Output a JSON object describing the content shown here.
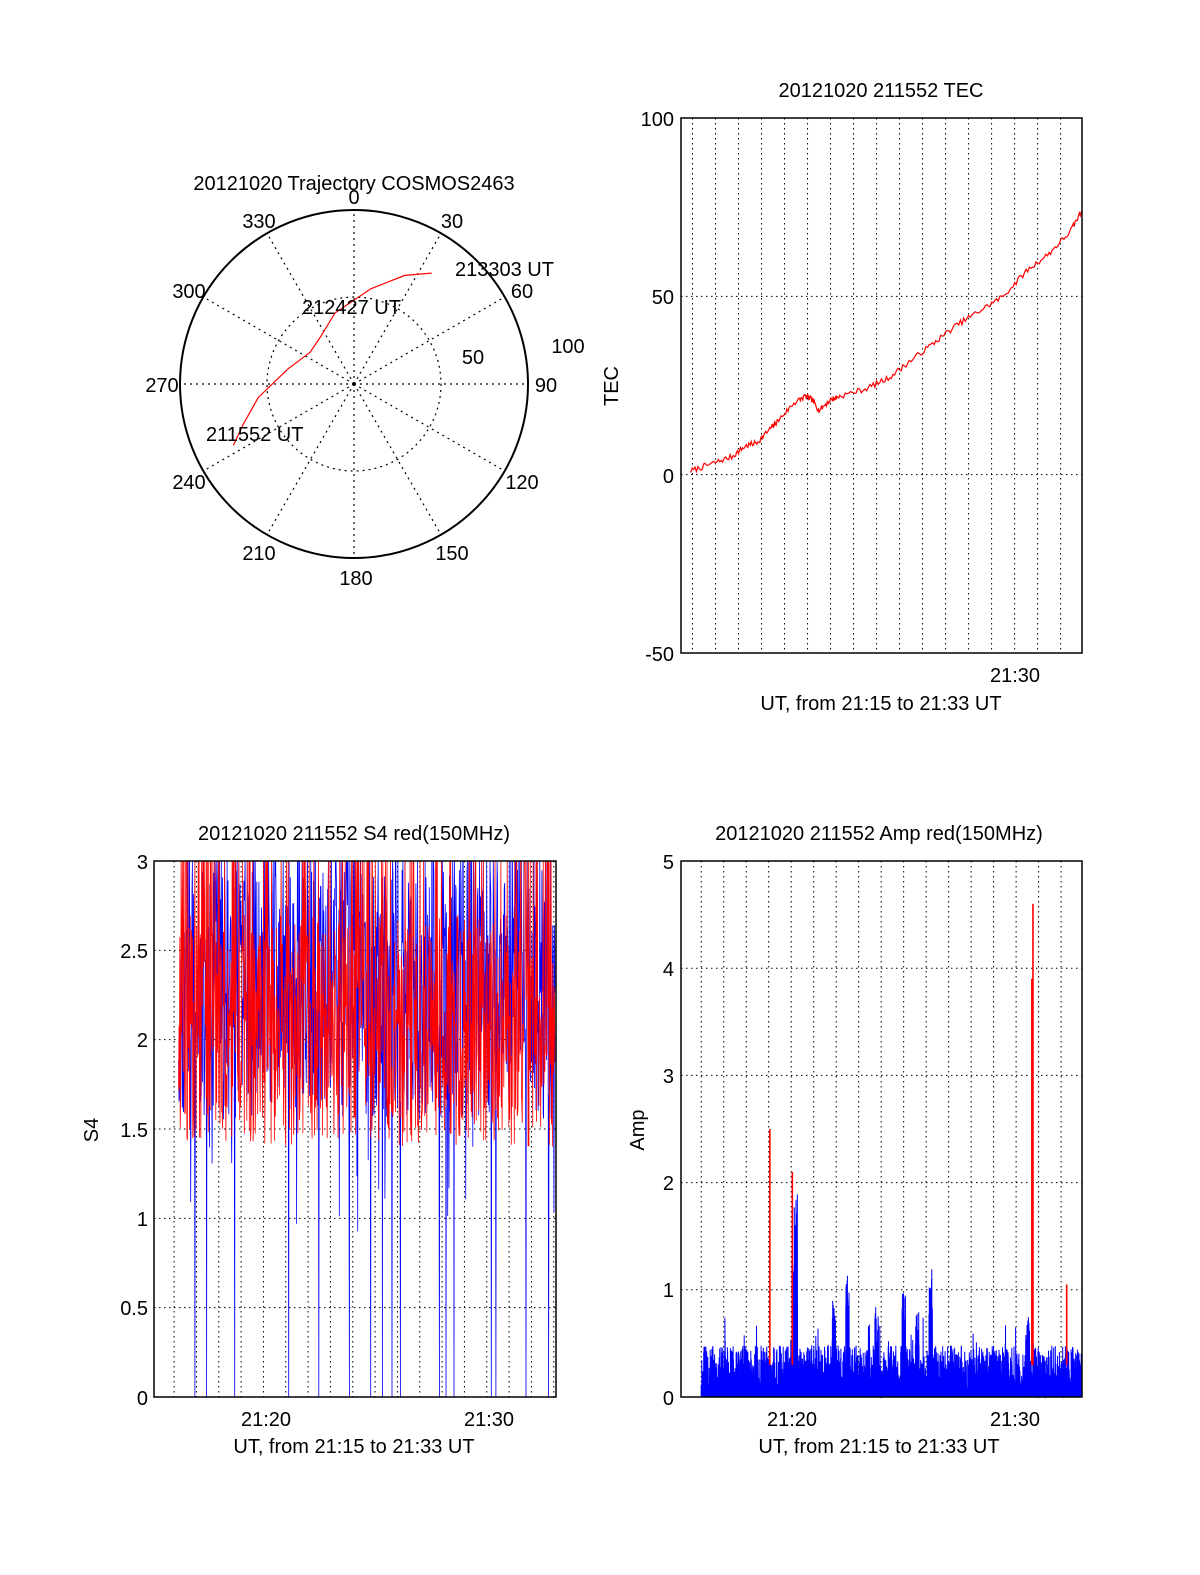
{
  "colors": {
    "red": "#ff0000",
    "blue": "#0000ff",
    "axis": "#000000",
    "grid": "#000000",
    "background": "#ffffff"
  },
  "chart_data": [
    {
      "type": "polar",
      "title": "20121020 Trajectory COSMOS2463",
      "azimuth_labels": [
        "0",
        "30",
        "60",
        "90",
        "120",
        "150",
        "180",
        "210",
        "240",
        "270",
        "300",
        "330"
      ],
      "radial_tick_labels": [
        "50",
        "100"
      ],
      "annotations": [
        "213303 UT",
        "212427 UT",
        "211552 UT"
      ],
      "grid": true,
      "series": [
        {
          "color": "red",
          "points_az_el": [
            [
              243,
              20
            ],
            [
              250,
              29
            ],
            [
              262,
              40
            ],
            [
              283,
              55
            ],
            [
              306,
              62
            ],
            [
              325,
              60
            ],
            [
              345,
              52
            ],
            [
              10,
              40
            ],
            [
              25,
              28
            ],
            [
              35,
              20
            ]
          ]
        }
      ]
    },
    {
      "type": "line",
      "title": "20121020 211552 TEC",
      "xlabel": "UT, from 21:15 to 21:33 UT",
      "ylabel": "TEC",
      "x_tick_labels": [
        "21:30"
      ],
      "y_tick_labels": [
        "100",
        "50",
        "0",
        "-50"
      ],
      "xlim_minutes": [
        15.5,
        32.93
      ],
      "ylim": [
        -50,
        100
      ],
      "grid": true,
      "series": [
        {
          "color": "red",
          "x_minutes": [
            15.92,
            16.8,
            17.7,
            18.3,
            18.8,
            19.4,
            19.7,
            20.4,
            20.9,
            21.2,
            21.5,
            22.0,
            22.4,
            23.5,
            24.5,
            25.5,
            26.5,
            27.5,
            28.5,
            29.5,
            30.5,
            31.5,
            32.4,
            32.93
          ],
          "values": [
            1,
            3,
            5,
            8,
            9,
            13,
            15,
            20,
            22,
            21,
            18,
            21,
            22,
            24,
            27,
            32,
            37,
            42,
            46,
            50,
            57,
            62,
            68,
            74
          ]
        }
      ]
    },
    {
      "type": "line",
      "title": "20121020 211552 S4 red(150MHz)",
      "xlabel": "UT, from 21:15 to 21:33 UT",
      "ylabel": "S4",
      "x_tick_labels": [
        "21:20",
        "21:30"
      ],
      "y_tick_labels": [
        "3",
        "2.5",
        "2",
        "1.5",
        "1",
        "0.5",
        "0"
      ],
      "xlim_minutes": [
        15.1,
        33.1
      ],
      "ylim": [
        0,
        3
      ],
      "grid": true,
      "series": [
        {
          "color": "red",
          "description": "fluctuating mostly between 1.5 and 3"
        },
        {
          "color": "blue",
          "description": "fluctuating mostly between 1.5 and 3 with drops to 0"
        }
      ]
    },
    {
      "type": "line",
      "title": "20121020 211552 Amp red(150MHz)",
      "xlabel": "UT, from 21:15 to 21:33 UT",
      "ylabel": "Amp",
      "x_tick_labels": [
        "21:20",
        "21:30"
      ],
      "y_tick_labels": [
        "5",
        "4",
        "3",
        "2",
        "1",
        "0"
      ],
      "xlim_minutes": [
        15.1,
        32.93
      ],
      "ylim": [
        0,
        5
      ],
      "grid": true,
      "series": [
        {
          "color": "red",
          "spikes": [
            [
              19.05,
              2.5
            ],
            [
              20.05,
              2.1
            ],
            [
              30.75,
              4.6
            ],
            [
              30.7,
              3.9
            ],
            [
              32.25,
              1.05
            ]
          ]
        },
        {
          "color": "blue",
          "baseline_level": 0.3,
          "spikes": [
            [
              20.2,
              2.1
            ],
            [
              20.1,
              1.4
            ],
            [
              21.9,
              0.9
            ],
            [
              22.5,
              1.15
            ],
            [
              23.8,
              0.9
            ],
            [
              25.0,
              1.0
            ],
            [
              25.6,
              0.85
            ],
            [
              26.2,
              1.2
            ],
            [
              30.5,
              0.8
            ]
          ]
        }
      ]
    }
  ]
}
